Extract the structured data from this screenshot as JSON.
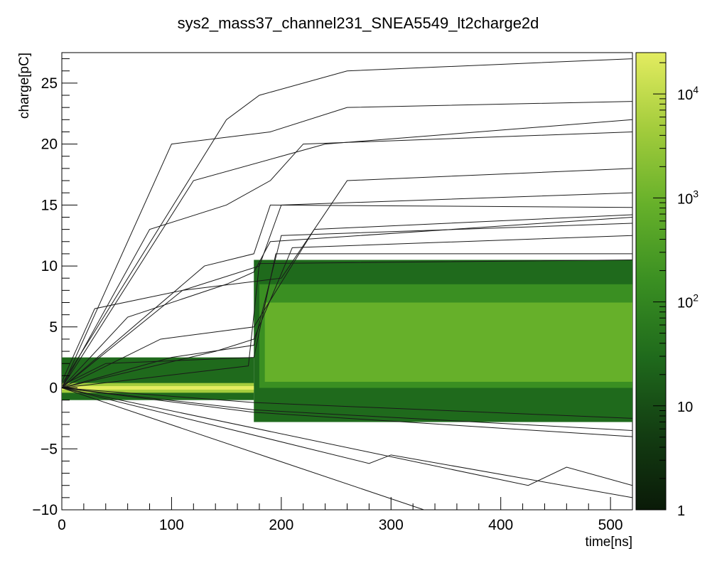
{
  "chart_data": {
    "type": "heatmap",
    "title": "sys2_mass37_channel231_SNEA5549_lt2charge2d",
    "xlabel": "time[ns]",
    "ylabel": "charge[pC]",
    "xlim": [
      0,
      520
    ],
    "ylim": [
      -10,
      27.5
    ],
    "x_ticks": [
      0,
      100,
      200,
      300,
      400,
      500
    ],
    "x_tick_labels": [
      "0",
      "100",
      "200",
      "300",
      "400",
      "500"
    ],
    "y_ticks": [
      -10,
      -5,
      0,
      5,
      10,
      15,
      20,
      25
    ],
    "y_tick_labels": [
      "−10",
      "−5",
      "0",
      "5",
      "10",
      "15",
      "20",
      "25"
    ],
    "z_scale": "log",
    "zlim": [
      1,
      25000
    ],
    "z_ticks": [
      1,
      10,
      100,
      1000,
      10000
    ],
    "z_tick_labels": [
      {
        "base": "1",
        "exp": ""
      },
      {
        "base": "10",
        "exp": ""
      },
      {
        "base": "10",
        "exp": "2"
      },
      {
        "base": "10",
        "exp": "3"
      },
      {
        "base": "10",
        "exp": "4"
      }
    ],
    "colormap": [
      "#0a1a08",
      "#133d12",
      "#1f6a1c",
      "#3a8f22",
      "#66b02a",
      "#a3cc3c",
      "#e3ec60"
    ],
    "density_regions": [
      {
        "x": [
          0,
          175
        ],
        "y": [
          -1.0,
          2.5
        ],
        "level": 20
      },
      {
        "x": [
          175,
          520
        ],
        "y": [
          -2.8,
          10.5
        ],
        "level": 60
      },
      {
        "x": [
          180,
          520
        ],
        "y": [
          0.0,
          8.5
        ],
        "level": 300
      },
      {
        "x": [
          185,
          520
        ],
        "y": [
          0.5,
          7.0
        ],
        "level": 1200
      },
      {
        "x": [
          0,
          175
        ],
        "y": [
          -0.4,
          0.4
        ],
        "level": 3000
      },
      {
        "x": [
          0,
          175
        ],
        "y": [
          -0.15,
          0.15
        ],
        "level": 20000
      }
    ],
    "traces": [
      {
        "x": [
          0,
          60,
          150,
          175,
          190,
          520
        ],
        "y": [
          0,
          5.8,
          8.5,
          9.5,
          12,
          14
        ]
      },
      {
        "x": [
          0,
          30,
          110,
          180,
          200,
          520
        ],
        "y": [
          0.5,
          6.5,
          8,
          10,
          15,
          16
        ]
      },
      {
        "x": [
          0,
          80,
          150,
          190,
          220,
          520
        ],
        "y": [
          0,
          13,
          15,
          17,
          20,
          21
        ]
      },
      {
        "x": [
          0,
          120,
          200,
          240,
          520
        ],
        "y": [
          0,
          17,
          19,
          20,
          22
        ]
      },
      {
        "x": [
          0,
          150,
          180,
          260,
          520
        ],
        "y": [
          0.3,
          22,
          24,
          26,
          27
        ]
      },
      {
        "x": [
          0,
          100,
          175,
          200,
          520
        ],
        "y": [
          0,
          2.5,
          3.5,
          12.5,
          13.5
        ]
      },
      {
        "x": [
          0,
          140,
          175,
          210,
          520
        ],
        "y": [
          0,
          3,
          4,
          11.5,
          12.5
        ]
      },
      {
        "x": [
          0,
          90,
          175,
          230,
          520
        ],
        "y": [
          0,
          4,
          5,
          13,
          14.2
        ]
      },
      {
        "x": [
          0,
          110,
          200,
          260,
          520
        ],
        "y": [
          0,
          8,
          9,
          17,
          18
        ]
      },
      {
        "x": [
          0,
          100,
          190,
          260,
          520
        ],
        "y": [
          0,
          20,
          21,
          23,
          23.5
        ]
      },
      {
        "x": [
          0,
          130,
          175,
          190,
          520
        ],
        "y": [
          0,
          10,
          11,
          15,
          14.8
        ]
      },
      {
        "x": [
          0,
          40,
          175,
          195,
          520
        ],
        "y": [
          0.2,
          2,
          2.5,
          11,
          11
        ]
      },
      {
        "x": [
          0,
          170,
          180,
          520
        ],
        "y": [
          0,
          1.8,
          10.2,
          10.5
        ]
      },
      {
        "x": [
          0,
          175,
          520
        ],
        "y": [
          0,
          -1.8,
          -3.5
        ]
      },
      {
        "x": [
          0,
          175,
          520
        ],
        "y": [
          0,
          -2.0,
          -4.0
        ]
      },
      {
        "x": [
          0,
          280,
          300,
          520
        ],
        "y": [
          0,
          -6.2,
          -5.5,
          -9
        ]
      },
      {
        "x": [
          0,
          330,
          520
        ],
        "y": [
          0,
          -10,
          -13
        ]
      },
      {
        "x": [
          0,
          425,
          460,
          520
        ],
        "y": [
          0,
          -8,
          -6.5,
          -8
        ]
      },
      {
        "x": [
          0,
          175,
          520
        ],
        "y": [
          0,
          -1.2,
          -2.5
        ]
      }
    ]
  }
}
